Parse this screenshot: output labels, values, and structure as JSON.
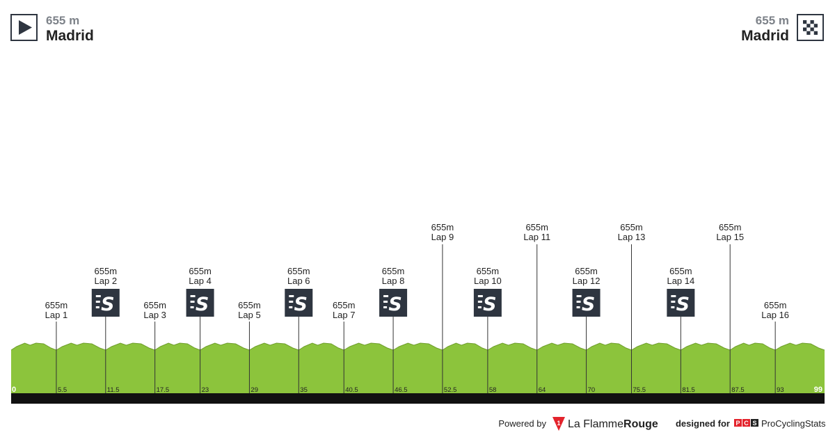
{
  "start": {
    "elevation": "655 m",
    "city": "Madrid",
    "icon": "start-flag-icon"
  },
  "finish": {
    "elevation": "655 m",
    "city": "Madrid",
    "icon": "finish-checkered-flag-icon"
  },
  "profile": {
    "total_km": 99,
    "km_start_label": "0",
    "km_end_label": "99",
    "fill_color": "#8cc43c",
    "fill_dark_color": "#6f9e2c",
    "ground_color": "#111111",
    "sprint_box_color": "#2e3540"
  },
  "laps": [
    {
      "km": 5.5,
      "km_label": "5.5",
      "elev": "655m",
      "name": "Lap 1",
      "sprint": false,
      "tall": false
    },
    {
      "km": 11.5,
      "km_label": "11.5",
      "elev": "655m",
      "name": "Lap 2",
      "sprint": true,
      "tall": false
    },
    {
      "km": 17.5,
      "km_label": "17.5",
      "elev": "655m",
      "name": "Lap 3",
      "sprint": false,
      "tall": false
    },
    {
      "km": 23,
      "km_label": "23",
      "elev": "655m",
      "name": "Lap 4",
      "sprint": true,
      "tall": false
    },
    {
      "km": 29,
      "km_label": "29",
      "elev": "655m",
      "name": "Lap 5",
      "sprint": false,
      "tall": false
    },
    {
      "km": 35,
      "km_label": "35",
      "elev": "655m",
      "name": "Lap 6",
      "sprint": true,
      "tall": false
    },
    {
      "km": 40.5,
      "km_label": "40.5",
      "elev": "655m",
      "name": "Lap 7",
      "sprint": false,
      "tall": false
    },
    {
      "km": 46.5,
      "km_label": "46.5",
      "elev": "655m",
      "name": "Lap 8",
      "sprint": true,
      "tall": false
    },
    {
      "km": 52.5,
      "km_label": "52.5",
      "elev": "655m",
      "name": "Lap 9",
      "sprint": false,
      "tall": true
    },
    {
      "km": 58,
      "km_label": "58",
      "elev": "655m",
      "name": "Lap 10",
      "sprint": true,
      "tall": false
    },
    {
      "km": 64,
      "km_label": "64",
      "elev": "655m",
      "name": "Lap 11",
      "sprint": false,
      "tall": true
    },
    {
      "km": 70,
      "km_label": "70",
      "elev": "655m",
      "name": "Lap 12",
      "sprint": true,
      "tall": false
    },
    {
      "km": 75.5,
      "km_label": "75.5",
      "elev": "655m",
      "name": "Lap 13",
      "sprint": false,
      "tall": true
    },
    {
      "km": 81.5,
      "km_label": "81.5",
      "elev": "655m",
      "name": "Lap 14",
      "sprint": true,
      "tall": false
    },
    {
      "km": 87.5,
      "km_label": "87.5",
      "elev": "655m",
      "name": "Lap 15",
      "sprint": false,
      "tall": true
    },
    {
      "km": 93,
      "km_label": "93",
      "elev": "655m",
      "name": "Lap 16",
      "sprint": false,
      "tall": false
    }
  ],
  "footer": {
    "powered_by": "Powered by",
    "brand_prefix": "La Flamme",
    "brand_suffix": "Rouge",
    "brand_mark": "1",
    "designed_for": "designed for",
    "pcs_letters": [
      "P",
      "C",
      "S"
    ],
    "pcs_name": "ProCyclingStats",
    "red": "#e3232c"
  }
}
